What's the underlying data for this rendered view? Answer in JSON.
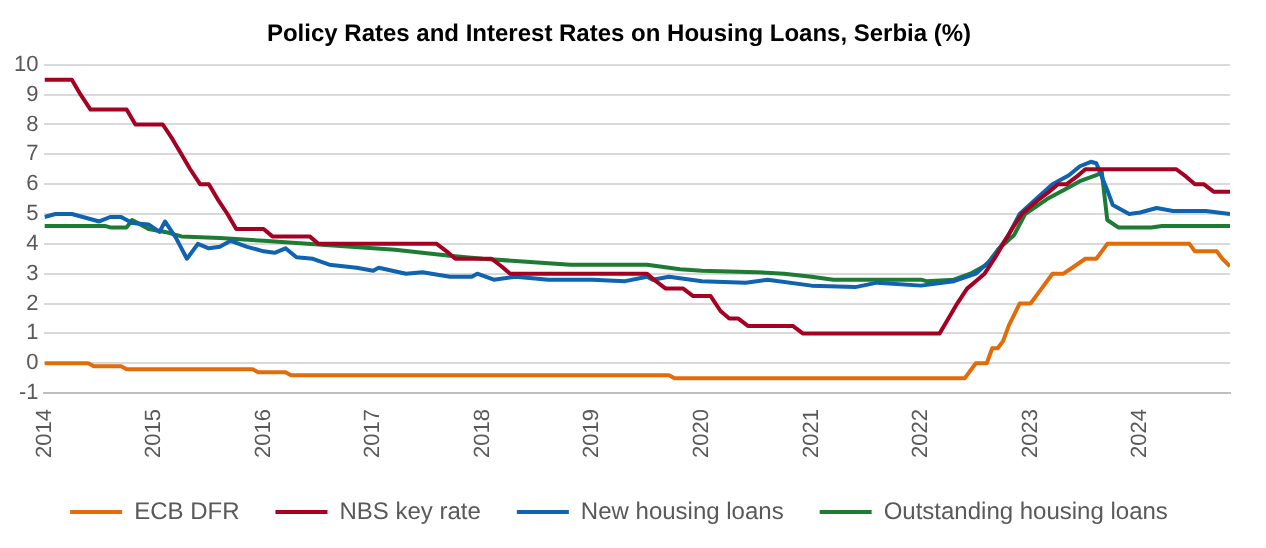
{
  "chart_data": {
    "type": "line",
    "title": "Policy Rates and Interest Rates on Housing Loans, Serbia (%)",
    "xlim": [
      2014,
      2024.82
    ],
    "xticks": [
      2014,
      2015,
      2016,
      2017,
      2018,
      2019,
      2020,
      2021,
      2022,
      2023,
      2024
    ],
    "ylim": [
      -1,
      10
    ],
    "yticks": [
      -1,
      0,
      1,
      2,
      3,
      4,
      5,
      6,
      7,
      8,
      9,
      10
    ],
    "grid": "y",
    "legend": "bottom",
    "marker": "none",
    "line_style": "solid",
    "series": [
      {
        "name": "ECB DFR",
        "color": "#e36c0a",
        "x": [
          2014,
          2014.4,
          2014.45,
          2014.7,
          2014.75,
          2015.9,
          2015.95,
          2016.2,
          2016.25,
          2019.7,
          2019.75,
          2022.4,
          2022.5,
          2022.6,
          2022.65,
          2022.7,
          2022.75,
          2022.8,
          2022.9,
          2023.0,
          2023.1,
          2023.2,
          2023.3,
          2023.4,
          2023.5,
          2023.6,
          2023.7,
          2024.45,
          2024.5,
          2024.7,
          2024.75,
          2024.82
        ],
        "values": [
          0,
          0,
          -0.1,
          -0.1,
          -0.2,
          -0.2,
          -0.3,
          -0.3,
          -0.4,
          -0.4,
          -0.5,
          -0.5,
          0,
          0,
          0.5,
          0.5,
          0.75,
          1.25,
          2.0,
          2.0,
          2.5,
          3.0,
          3.0,
          3.25,
          3.5,
          3.5,
          4.0,
          4.0,
          3.75,
          3.75,
          3.5,
          3.25
        ]
      },
      {
        "name": "NBS key rate",
        "color": "#a50021",
        "x": [
          2014,
          2014.25,
          2014.33,
          2014.42,
          2014.75,
          2014.83,
          2015.08,
          2015.17,
          2015.25,
          2015.33,
          2015.42,
          2015.5,
          2015.58,
          2015.67,
          2015.75,
          2016.0,
          2016.08,
          2016.42,
          2016.5,
          2017.58,
          2017.67,
          2017.75,
          2018.08,
          2018.17,
          2018.25,
          2019.5,
          2019.58,
          2019.67,
          2019.83,
          2019.92,
          2020.08,
          2020.17,
          2020.25,
          2020.33,
          2020.42,
          2020.83,
          2020.92,
          2022.17,
          2022.25,
          2022.33,
          2022.42,
          2022.5,
          2022.58,
          2022.67,
          2022.75,
          2022.83,
          2022.92,
          2023.0,
          2023.08,
          2023.17,
          2023.25,
          2023.33,
          2023.42,
          2023.5,
          2024.33,
          2024.42,
          2024.5,
          2024.58,
          2024.67,
          2024.82
        ],
        "values": [
          9.5,
          9.5,
          9,
          8.5,
          8.5,
          8,
          8,
          7.5,
          7,
          6.5,
          6,
          6,
          5.5,
          5,
          4.5,
          4.5,
          4.25,
          4.25,
          4,
          4,
          3.75,
          3.5,
          3.5,
          3.25,
          3,
          3,
          2.75,
          2.5,
          2.5,
          2.25,
          2.25,
          1.75,
          1.5,
          1.5,
          1.25,
          1.25,
          1,
          1,
          1.5,
          2,
          2.5,
          2.75,
          3,
          3.5,
          4,
          4.5,
          5,
          5.25,
          5.5,
          5.75,
          6,
          6,
          6.25,
          6.5,
          6.5,
          6.25,
          6,
          6,
          5.75,
          5.75
        ]
      },
      {
        "name": "New housing loans",
        "color": "#0f63b0",
        "x": [
          2014,
          2014.1,
          2014.25,
          2014.4,
          2014.5,
          2014.6,
          2014.7,
          2014.8,
          2014.95,
          2015.05,
          2015.1,
          2015.2,
          2015.3,
          2015.4,
          2015.5,
          2015.6,
          2015.7,
          2015.85,
          2016.0,
          2016.1,
          2016.2,
          2016.3,
          2016.45,
          2016.6,
          2016.85,
          2017.0,
          2017.05,
          2017.3,
          2017.45,
          2017.7,
          2017.9,
          2017.95,
          2018.1,
          2018.3,
          2018.6,
          2019.0,
          2019.3,
          2019.5,
          2019.55,
          2019.7,
          2019.9,
          2020.0,
          2020.4,
          2020.6,
          2021.0,
          2021.4,
          2021.6,
          2022.0,
          2022.3,
          2022.5,
          2022.65,
          2022.8,
          2022.9,
          2023.05,
          2023.2,
          2023.35,
          2023.45,
          2023.55,
          2023.6,
          2023.7,
          2023.75,
          2023.9,
          2024.0,
          2024.15,
          2024.3,
          2024.6,
          2024.82
        ],
        "values": [
          4.9,
          5.0,
          5.0,
          4.85,
          4.75,
          4.9,
          4.9,
          4.7,
          4.65,
          4.4,
          4.75,
          4.2,
          3.5,
          4.0,
          3.85,
          3.9,
          4.1,
          3.9,
          3.75,
          3.7,
          3.85,
          3.55,
          3.5,
          3.3,
          3.2,
          3.1,
          3.2,
          3.0,
          3.05,
          2.9,
          2.9,
          3.0,
          2.8,
          2.9,
          2.8,
          2.8,
          2.75,
          2.9,
          2.8,
          2.9,
          2.8,
          2.75,
          2.7,
          2.8,
          2.6,
          2.55,
          2.7,
          2.6,
          2.75,
          3.0,
          3.5,
          4.3,
          5.0,
          5.5,
          6.0,
          6.3,
          6.6,
          6.75,
          6.7,
          5.8,
          5.3,
          5.0,
          5.05,
          5.2,
          5.1,
          5.1,
          5.0
        ]
      },
      {
        "name": "Outstanding housing loans",
        "color": "#1e7b34",
        "x": [
          2014,
          2014.55,
          2014.6,
          2014.75,
          2014.8,
          2014.95,
          2015.1,
          2015.25,
          2015.6,
          2016.0,
          2016.4,
          2016.8,
          2017.2,
          2017.7,
          2018.0,
          2018.4,
          2018.8,
          2019.5,
          2019.8,
          2020.0,
          2020.5,
          2020.75,
          2021.0,
          2021.2,
          2022.0,
          2022.05,
          2022.3,
          2022.45,
          2022.6,
          2022.7,
          2022.85,
          2022.95,
          2023.15,
          2023.3,
          2023.45,
          2023.6,
          2023.65,
          2023.7,
          2023.8,
          2024.1,
          2024.2,
          2024.82
        ],
        "values": [
          4.6,
          4.6,
          4.55,
          4.55,
          4.8,
          4.5,
          4.4,
          4.25,
          4.2,
          4.1,
          4.0,
          3.9,
          3.8,
          3.6,
          3.5,
          3.4,
          3.3,
          3.3,
          3.15,
          3.1,
          3.05,
          3.0,
          2.9,
          2.8,
          2.8,
          2.75,
          2.8,
          3.0,
          3.3,
          3.8,
          4.3,
          5.0,
          5.5,
          5.8,
          6.1,
          6.3,
          6.4,
          4.8,
          4.55,
          4.55,
          4.6,
          4.6
        ]
      }
    ]
  }
}
